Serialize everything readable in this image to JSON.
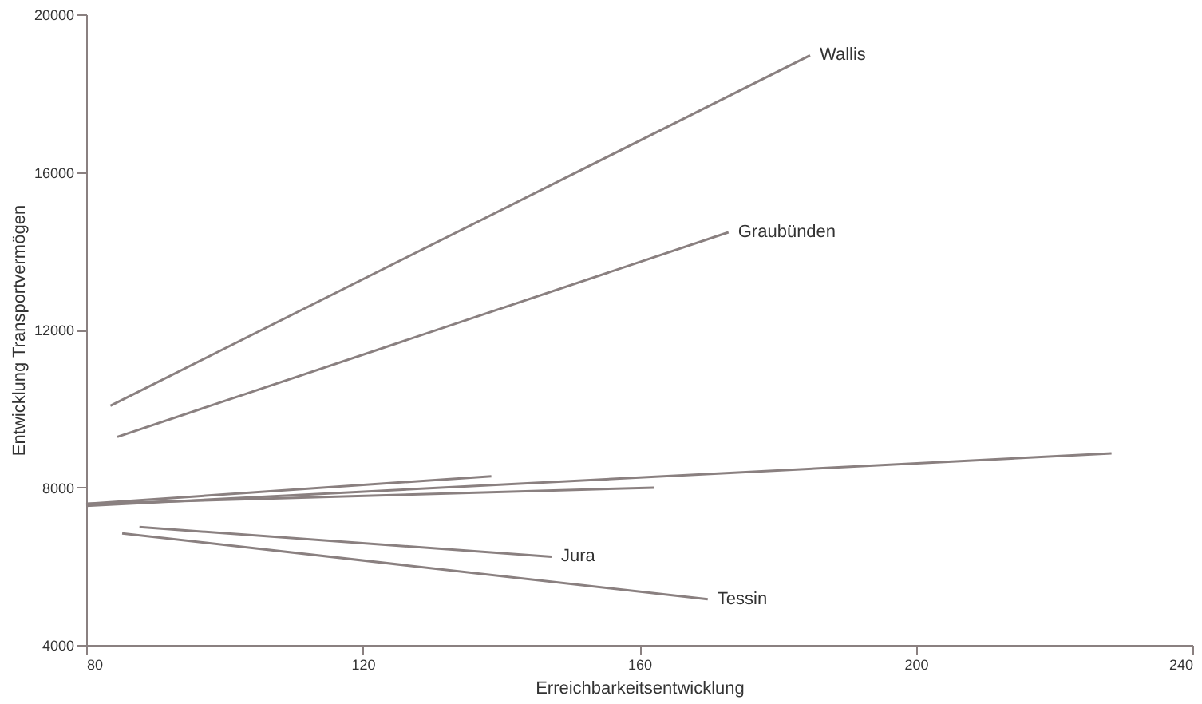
{
  "chart_data": {
    "type": "line",
    "xlabel": "Erreichbarkeitsentwicklung",
    "ylabel": "Entwicklung Transportvermögen",
    "xlim": [
      80,
      240
    ],
    "xticks": [
      80,
      120,
      160,
      200,
      240
    ],
    "ylim": [
      4000,
      20000
    ],
    "yticks": [
      4000,
      8000,
      12000,
      16000,
      20000
    ],
    "grid": false,
    "marker": "none",
    "line_style": "solid",
    "series": [
      {
        "name": "Wallis",
        "color": "#8a8080",
        "x": [
          83.5,
          184.7
        ],
        "values": [
          10070,
          18960
        ]
      },
      {
        "name": "Graubünden",
        "color": "#8a8080",
        "x": [
          84.5,
          172.9
        ],
        "values": [
          9280,
          14470
        ]
      },
      {
        "color": "#8a8080",
        "x": [
          80,
          228.3
        ],
        "values": [
          7530,
          8860
        ]
      },
      {
        "color": "#8a8080",
        "x": [
          80,
          162.1
        ],
        "values": [
          7580,
          7990
        ]
      },
      {
        "color": "#8a8080",
        "x": [
          80,
          138.6
        ],
        "values": [
          7580,
          8280
        ]
      },
      {
        "name": "Jura",
        "color": "#8a8080",
        "x": [
          87.7,
          147.3
        ],
        "values": [
          6990,
          6240
        ]
      },
      {
        "name": "Tessin",
        "color": "#8a8080",
        "x": [
          85.2,
          169.9
        ],
        "values": [
          6830,
          5160
        ]
      }
    ]
  }
}
